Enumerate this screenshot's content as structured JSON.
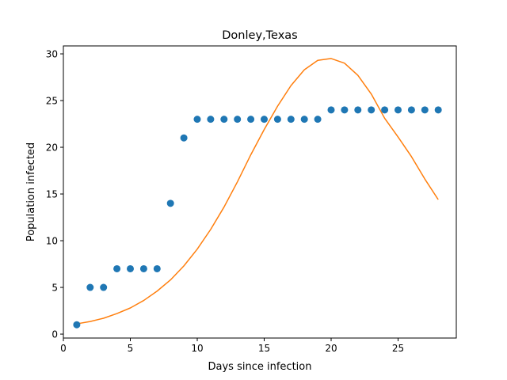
{
  "chart_data": {
    "type": "scatter",
    "title": "Donley,Texas",
    "xlabel": "Days since infection",
    "ylabel": "Population infected",
    "xlim": [
      0,
      29.35
    ],
    "ylim": [
      -0.42,
      30.85
    ],
    "xticks": [
      0,
      5,
      10,
      15,
      20,
      25
    ],
    "yticks": [
      0,
      5,
      10,
      15,
      20,
      25,
      30
    ],
    "grid": false,
    "series": [
      {
        "kind": "scatter",
        "color": "#1f77b4",
        "x": [
          1,
          2,
          3,
          4,
          5,
          6,
          7,
          8,
          9,
          10,
          11,
          12,
          13,
          14,
          15,
          16,
          17,
          18,
          19,
          20,
          21,
          22,
          23,
          24,
          25,
          26,
          27,
          28
        ],
        "y": [
          1,
          5,
          5,
          7,
          7,
          7,
          7,
          14,
          21,
          23,
          23,
          23,
          23,
          23,
          23,
          23,
          23,
          23,
          23,
          24,
          24,
          24,
          24,
          24,
          24,
          24,
          24,
          24
        ]
      },
      {
        "kind": "line",
        "color": "#ff7f0e",
        "x": [
          1,
          2,
          3,
          4,
          5,
          6,
          7,
          8,
          9,
          10,
          11,
          12,
          13,
          14,
          15,
          16,
          17,
          18,
          19,
          20,
          21,
          22,
          23,
          24,
          25,
          26,
          27,
          28
        ],
        "y": [
          1.1,
          1.35,
          1.7,
          2.2,
          2.8,
          3.6,
          4.6,
          5.8,
          7.3,
          9.1,
          11.2,
          13.6,
          16.3,
          19.2,
          21.9,
          24.4,
          26.6,
          28.3,
          29.3,
          29.5,
          29.0,
          27.7,
          25.7,
          23.1,
          21.1,
          19.0,
          16.6,
          14.4
        ]
      }
    ]
  }
}
